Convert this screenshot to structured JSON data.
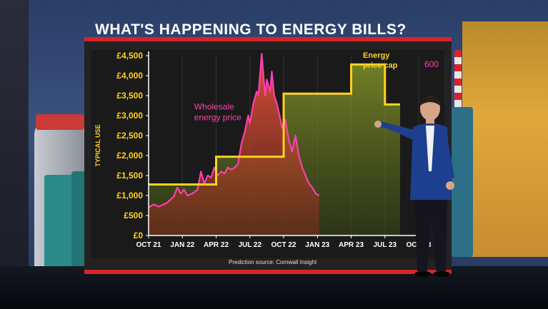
{
  "title": "WHAT'S HAPPENING TO ENERGY BILLS?",
  "source": "Prediction source: Cornwall Insight",
  "chart_data": {
    "type": "line",
    "ylabel": "TYPICAL USE",
    "ylim": [
      0,
      4500
    ],
    "y_ticks": [
      "£0",
      "£500",
      "£1,000",
      "£1,500",
      "£2,000",
      "£2,500",
      "£3,000",
      "£3,500",
      "£4,000",
      "£4,500"
    ],
    "y_tick_values": [
      0,
      500,
      1000,
      1500,
      2000,
      2500,
      3000,
      3500,
      4000,
      4500
    ],
    "x_ticks": [
      "OCT 21",
      "JAN 22",
      "APR 22",
      "JUL 22",
      "OCT 22",
      "JAN 23",
      "APR 23",
      "JUL 23",
      "OCT 23"
    ],
    "right_axis_label": "600",
    "annotations": [
      {
        "text_lines": [
          "Wholesale",
          "energy price"
        ],
        "color": "#ff3fb0"
      },
      {
        "text_lines": [
          "Energy",
          "price cap"
        ],
        "color": "#ffd21f"
      }
    ],
    "series": [
      {
        "name": "Energy price cap",
        "color": "#ffd21f",
        "style": "step",
        "x": [
          0,
          1,
          2,
          3,
          4,
          5,
          6,
          7
        ],
        "y": [
          1277,
          1277,
          1971,
          1971,
          3549,
          3549,
          4279,
          3280
        ]
      },
      {
        "name": "Wholesale energy price",
        "color": "#ff3fb0",
        "style": "line",
        "x": [
          0,
          0.15,
          0.3,
          0.45,
          0.55,
          0.65,
          0.75,
          0.85,
          0.95,
          1.05,
          1.15,
          1.3,
          1.45,
          1.55,
          1.65,
          1.75,
          1.85,
          1.95,
          2.05,
          2.15,
          2.25,
          2.35,
          2.45,
          2.55,
          2.65,
          2.75,
          2.85,
          2.95,
          3.0,
          3.1,
          3.2,
          3.25,
          3.35,
          3.45,
          3.5,
          3.6,
          3.65,
          3.72,
          3.8,
          3.88,
          3.95,
          4.05,
          4.15,
          4.25,
          4.35,
          4.45,
          4.55,
          4.65,
          4.75,
          4.85,
          4.95,
          5.05
        ],
        "y": [
          700,
          780,
          720,
          780,
          820,
          900,
          980,
          1200,
          1050,
          1150,
          1000,
          1050,
          1150,
          1600,
          1300,
          1500,
          1450,
          1700,
          1500,
          1600,
          1550,
          1700,
          1650,
          1700,
          1800,
          2300,
          2600,
          3000,
          2800,
          3300,
          3600,
          3500,
          4550,
          3500,
          3900,
          3600,
          4100,
          3500,
          3300,
          3000,
          2700,
          2900,
          2400,
          2100,
          2500,
          2000,
          1700,
          1500,
          1300,
          1200,
          1050,
          1000
        ]
      }
    ]
  }
}
